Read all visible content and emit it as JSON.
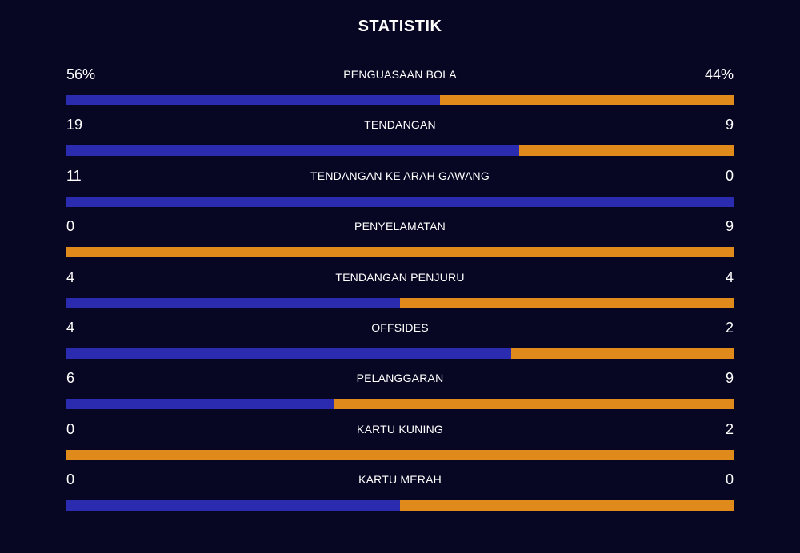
{
  "title": "STATISTIK",
  "colors": {
    "background": "#080723",
    "home": "#2b2bb0",
    "away": "#e08a1c",
    "text": "#ffffff"
  },
  "stats": [
    {
      "label": "PENGUASAAN BOLA",
      "home": "56%",
      "away": "44%",
      "home_share": 0.56
    },
    {
      "label": "TENDANGAN",
      "home": "19",
      "away": "9",
      "home_share": 0.679
    },
    {
      "label": "TENDANGAN KE ARAH GAWANG",
      "home": "11",
      "away": "0",
      "home_share": 1.0
    },
    {
      "label": "PENYELAMATAN",
      "home": "0",
      "away": "9",
      "home_share": 0.0
    },
    {
      "label": "TENDANGAN PENJURU",
      "home": "4",
      "away": "4",
      "home_share": 0.5
    },
    {
      "label": "OFFSIDES",
      "home": "4",
      "away": "2",
      "home_share": 0.667
    },
    {
      "label": "PELANGGARAN",
      "home": "6",
      "away": "9",
      "home_share": 0.4
    },
    {
      "label": "KARTU KUNING",
      "home": "0",
      "away": "2",
      "home_share": 0.0
    },
    {
      "label": "KARTU MERAH",
      "home": "0",
      "away": "0",
      "home_share": 0.5
    }
  ]
}
